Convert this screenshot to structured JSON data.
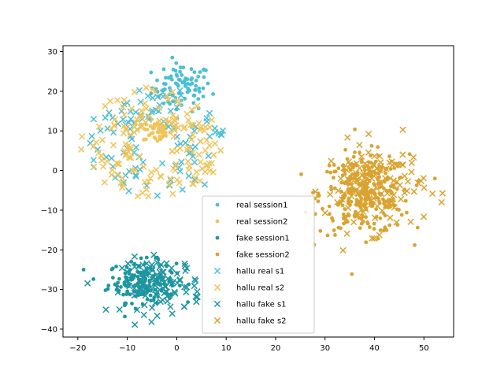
{
  "chart_data": {
    "type": "scatter",
    "title": "",
    "xlabel": "",
    "ylabel": "",
    "xlim": [
      -23,
      56
    ],
    "ylim": [
      -42,
      31.5
    ],
    "xticks": [
      -20,
      -10,
      0,
      10,
      20,
      30,
      40,
      50
    ],
    "yticks": [
      -40,
      -30,
      -20,
      -10,
      0,
      10,
      20,
      30
    ],
    "grid": false,
    "legend_position": "lower-center",
    "series": [
      {
        "name": "real session1",
        "marker": "dot",
        "color": "#4bbfd6",
        "n": 90,
        "cx": 1,
        "cy": 21,
        "sx": 3.0,
        "sy": 3.0
      },
      {
        "name": "real session2",
        "marker": "dot",
        "color": "#f0c45a",
        "n": 50,
        "cx": -4,
        "cy": 10,
        "sx": 1.4,
        "sy": 1.5
      },
      {
        "name": "fake session1",
        "marker": "dot",
        "color": "#1e96a0",
        "n": 170,
        "cx": -7,
        "cy": -28,
        "sx": 3.4,
        "sy": 2.6
      },
      {
        "name": "fake session2",
        "marker": "dot",
        "color": "#daa330",
        "n": 300,
        "cx": 38,
        "cy": -6,
        "sx": 4.5,
        "sy": 5.0
      },
      {
        "name": "hallu real s1",
        "marker": "x",
        "color": "#4bbfd6",
        "n": 110,
        "cx": -4,
        "cy": 7,
        "sx": 7.5,
        "sy": 6.5
      },
      {
        "name": "hallu real s2",
        "marker": "x",
        "color": "#f0c45a",
        "n": 160,
        "cx": -5,
        "cy": 7,
        "sx": 7.0,
        "sy": 7.0
      },
      {
        "name": "hallu fake s1",
        "marker": "x",
        "color": "#1e96a0",
        "n": 100,
        "cx": -3,
        "cy": -29,
        "sx": 4.0,
        "sy": 3.5
      },
      {
        "name": "hallu fake s2",
        "marker": "x",
        "color": "#daa330",
        "n": 120,
        "cx": 40,
        "cy": -4,
        "sx": 5.0,
        "sy": 5.5
      }
    ]
  }
}
